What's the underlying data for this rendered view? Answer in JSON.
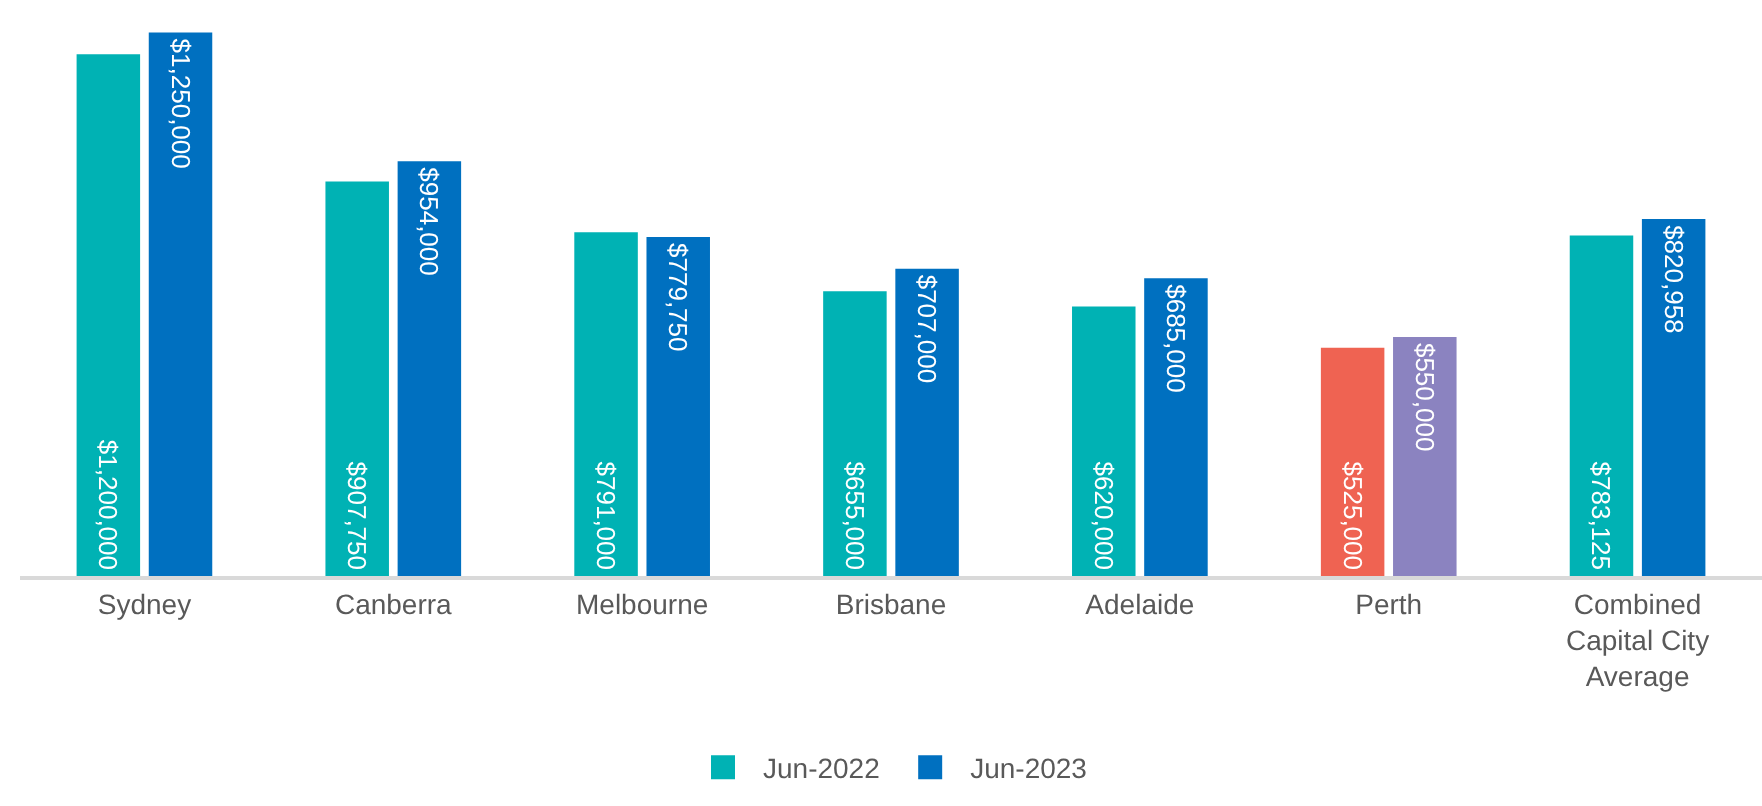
{
  "chart_data": {
    "type": "bar",
    "categories": [
      "Sydney",
      "Canberra",
      "Melbourne",
      "Brisbane",
      "Adelaide",
      "Perth",
      "Combined Capital City Average"
    ],
    "series": [
      {
        "name": "Jun-2022",
        "color": "#00b2b4",
        "colors": [
          null,
          null,
          null,
          null,
          null,
          "#ef6352",
          null
        ],
        "values": [
          1200000,
          907750,
          791000,
          655000,
          620000,
          525000,
          783125
        ],
        "value_labels": [
          "$1,200,000",
          "$907,750",
          "$791,000",
          "$655,000",
          "$620,000",
          "$525,000",
          "$783,125"
        ]
      },
      {
        "name": "Jun-2023",
        "color": "#0070c0",
        "colors": [
          null,
          null,
          null,
          null,
          null,
          "#8b83c0",
          null
        ],
        "values": [
          1250000,
          954000,
          779750,
          707000,
          685000,
          550000,
          820958
        ],
        "value_labels": [
          "$1,250,000",
          "$954,000",
          "$779,750",
          "$707,000",
          "$685,000",
          "$550,000",
          "$820,958"
        ]
      }
    ],
    "legend": "bottom",
    "grid": false
  }
}
